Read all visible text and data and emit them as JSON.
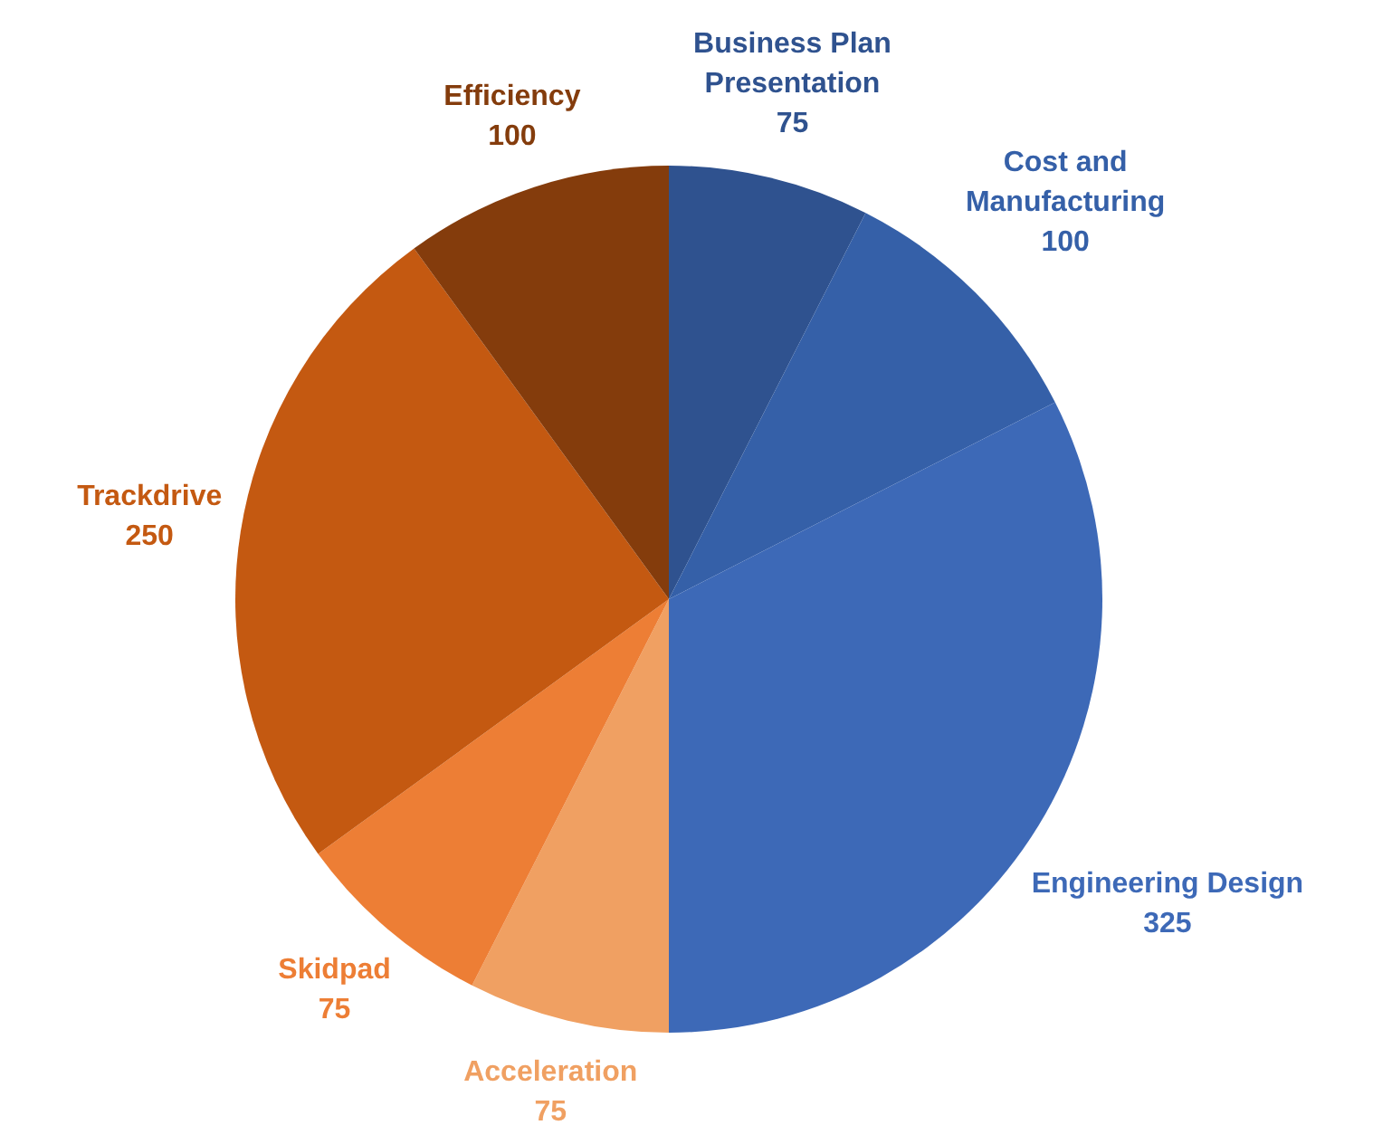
{
  "chart_data": {
    "type": "pie",
    "categories": [
      "Business Plan Presentation",
      "Cost and Manufacturing",
      "Engineering Design",
      "Acceleration",
      "Skidpad",
      "Trackdrive",
      "Efficiency"
    ],
    "values": [
      75,
      100,
      325,
      75,
      75,
      250,
      100
    ],
    "colors": [
      "#2f528f",
      "#3560a8",
      "#3d69b7",
      "#f0a062",
      "#ed7e35",
      "#c45911",
      "#843c0c"
    ],
    "data_labels": true,
    "legend": false
  }
}
